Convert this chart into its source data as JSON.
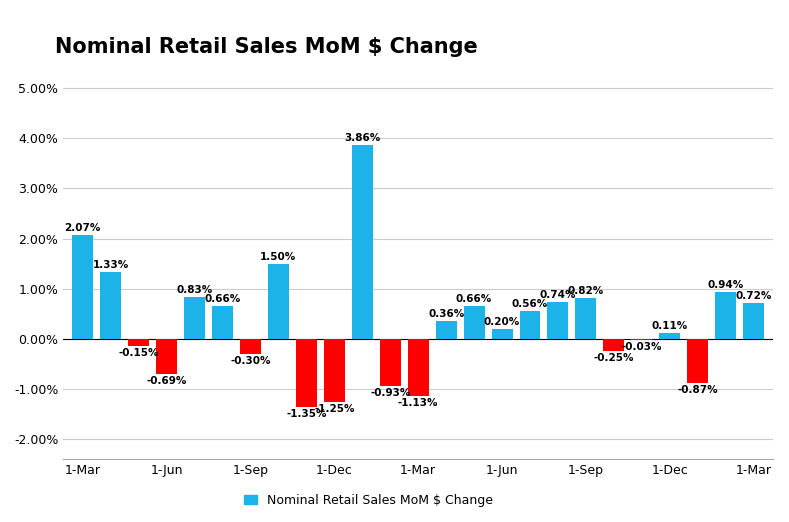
{
  "title": "Nominal Retail Sales MoM $ Change",
  "legend_label": "Nominal Retail Sales MoM $ Change",
  "bar_values": [
    2.07,
    1.33,
    -0.15,
    -0.69,
    0.83,
    0.66,
    -0.3,
    1.5,
    -1.35,
    -1.25,
    3.86,
    -0.93,
    -1.13,
    0.36,
    0.66,
    0.2,
    0.56,
    0.74,
    0.82,
    -0.25,
    -0.03,
    0.11,
    -0.87,
    0.94,
    0.72
  ],
  "xtick_indices": [
    0,
    3,
    6,
    9,
    12,
    15,
    18,
    21,
    24
  ],
  "xtick_labels": [
    "1-Mar",
    "1-Jun",
    "1-Sep",
    "1-Dec",
    "1-Mar",
    "1-Jun",
    "1-Sep",
    "1-Dec",
    "1-Mar"
  ],
  "ytick_values": [
    -2.0,
    -1.0,
    0.0,
    1.0,
    2.0,
    3.0,
    4.0,
    5.0
  ],
  "ytick_labels": [
    "-2.00%",
    "-1.00%",
    "0.00%",
    "1.00%",
    "2.00%",
    "3.00%",
    "4.00%",
    "5.00%"
  ],
  "ylim": [
    -2.4,
    5.4
  ],
  "xlim": [
    -0.7,
    24.7
  ],
  "color_positive": "#1BB3E8",
  "color_negative": "#FF0000",
  "background_color": "#FFFFFF",
  "grid_color": "#CCCCCC",
  "title_fontsize": 15,
  "label_fontsize": 7.5,
  "tick_fontsize": 9,
  "bar_width": 0.75
}
